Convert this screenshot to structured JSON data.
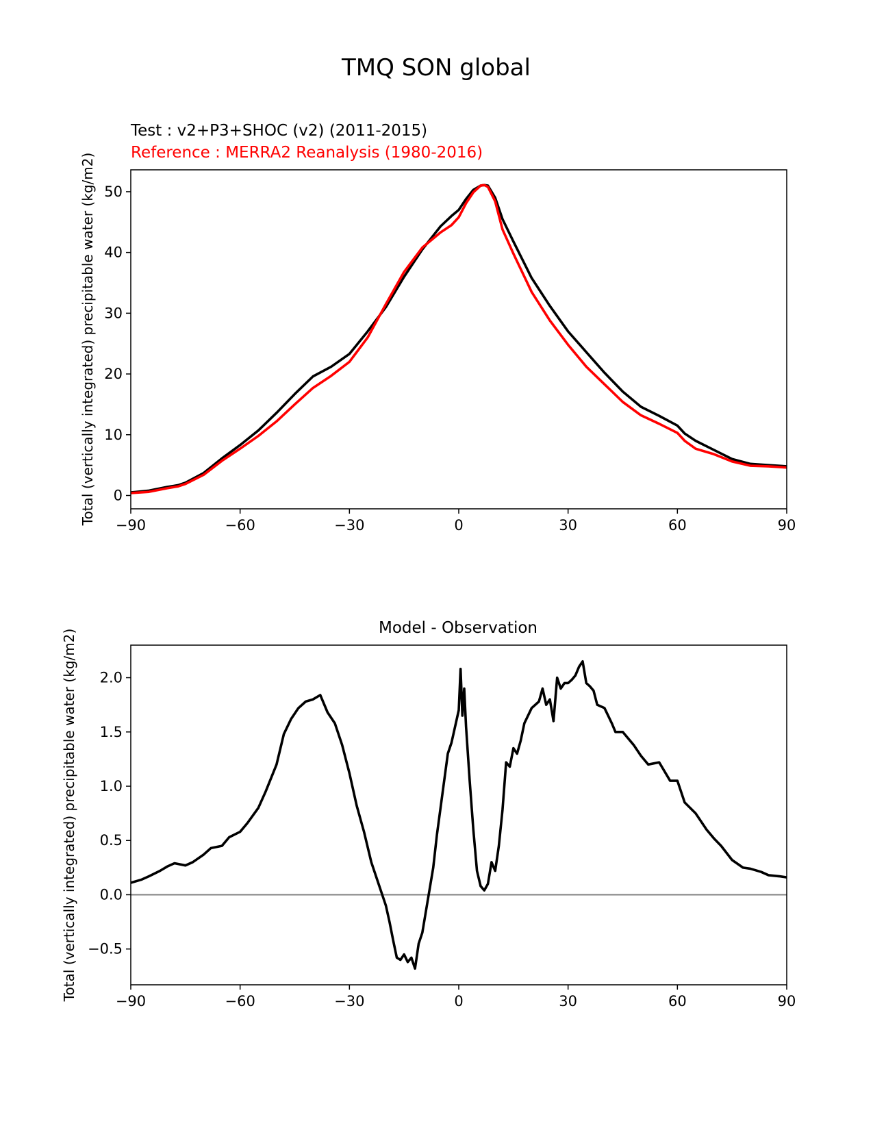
{
  "figure": {
    "suptitle": "TMQ SON global"
  },
  "colors": {
    "test": "#000000",
    "reference": "#ff0000",
    "zero_line": "#808080",
    "axis": "#000000"
  },
  "chart_data": [
    {
      "type": "line",
      "legend_lines": [
        "Test : v2+P3+SHOC (v2) (2011-2015)",
        "Reference : MERRA2 Reanalysis (1980-2016)"
      ],
      "title": "",
      "xlabel": "",
      "ylabel": "Total (vertically integrated) precipitable water (kg/m2)",
      "xlim": [
        -90,
        90
      ],
      "ylim": [
        -2.2,
        53.6
      ],
      "xticks": [
        -90,
        -60,
        -30,
        0,
        30,
        60,
        90
      ],
      "xtick_labels": [
        "−90",
        "−60",
        "−30",
        "0",
        "30",
        "60",
        "90"
      ],
      "yticks": [
        0,
        10,
        20,
        30,
        40,
        50
      ],
      "ytick_labels": [
        "0",
        "10",
        "20",
        "30",
        "40",
        "50"
      ],
      "x": [
        -90,
        -85,
        -80,
        -77,
        -75,
        -70,
        -65,
        -60,
        -55,
        -50,
        -45,
        -40,
        -35,
        -30,
        -25,
        -20,
        -15,
        -10,
        -5,
        -2,
        0,
        2,
        4,
        6,
        7,
        8,
        10,
        12,
        15,
        20,
        25,
        30,
        35,
        40,
        45,
        50,
        55,
        60,
        62,
        65,
        70,
        75,
        80,
        85,
        90
      ],
      "series": [
        {
          "name": "Test",
          "values": [
            0.5,
            0.8,
            1.4,
            1.7,
            2.1,
            3.7,
            6.1,
            8.3,
            10.7,
            13.6,
            16.7,
            19.6,
            21.2,
            23.3,
            27.0,
            31.0,
            36.0,
            40.5,
            44.3,
            46.0,
            47.0,
            48.8,
            50.3,
            51.0,
            51.1,
            51.0,
            49.0,
            45.5,
            41.8,
            35.8,
            31.2,
            27.0,
            23.6,
            20.2,
            17.1,
            14.6,
            13.1,
            11.5,
            10.2,
            9.0,
            7.5,
            6.0,
            5.2,
            5.0,
            4.8
          ]
        },
        {
          "name": "Reference",
          "values": [
            0.4,
            0.6,
            1.2,
            1.5,
            1.9,
            3.4,
            5.7,
            7.7,
            9.8,
            12.2,
            15.0,
            17.7,
            19.7,
            22.0,
            26.0,
            31.5,
            36.8,
            40.8,
            43.3,
            44.5,
            45.8,
            48.1,
            49.9,
            51.0,
            51.1,
            50.8,
            48.4,
            43.8,
            39.8,
            33.5,
            28.8,
            24.8,
            21.2,
            18.3,
            15.4,
            13.2,
            11.8,
            10.3,
            9.0,
            7.7,
            6.8,
            5.6,
            4.9,
            4.8,
            4.6
          ]
        }
      ]
    },
    {
      "type": "line",
      "title": "Model - Observation",
      "xlabel": "",
      "ylabel": "Total (vertically integrated) precipitable water (kg/m2)",
      "xlim": [
        -90,
        90
      ],
      "ylim": [
        -0.83,
        2.3
      ],
      "xticks": [
        -90,
        -60,
        -30,
        0,
        30,
        60,
        90
      ],
      "xtick_labels": [
        "−90",
        "−60",
        "−30",
        "0",
        "30",
        "60",
        "90"
      ],
      "yticks": [
        -0.5,
        0.0,
        0.5,
        1.0,
        1.5,
        2.0
      ],
      "ytick_labels": [
        "−0.5",
        "0.0",
        "0.5",
        "1.0",
        "1.5",
        "2.0"
      ],
      "zero_line": 0,
      "x": [
        -90,
        -87,
        -85,
        -82,
        -80,
        -78,
        -75,
        -73,
        -70,
        -68,
        -65,
        -63,
        -60,
        -58,
        -55,
        -53,
        -50,
        -48,
        -46,
        -44,
        -42,
        -40,
        -38,
        -36,
        -34,
        -32,
        -30,
        -28,
        -26,
        -24,
        -22,
        -21,
        -20,
        -19,
        -18,
        -17,
        -16,
        -15,
        -14,
        -13,
        -12,
        -11,
        -10,
        -9,
        -8,
        -7,
        -6,
        -5,
        -4,
        -3,
        -2,
        -1,
        0,
        0.5,
        1,
        1.5,
        2,
        3,
        4,
        5,
        6,
        7,
        8,
        9,
        10,
        11,
        12,
        13,
        14,
        15,
        16,
        17,
        18,
        20,
        22,
        23,
        24,
        25,
        26,
        27,
        28,
        29,
        30,
        31,
        32,
        33,
        34,
        35,
        36,
        37,
        38,
        40,
        42,
        43,
        45,
        48,
        50,
        52,
        55,
        58,
        60,
        62,
        65,
        68,
        70,
        72,
        75,
        78,
        80,
        83,
        85,
        88,
        90
      ],
      "series": [
        {
          "name": "Model - Observation",
          "values": [
            0.11,
            0.14,
            0.17,
            0.22,
            0.26,
            0.29,
            0.27,
            0.3,
            0.37,
            0.43,
            0.45,
            0.53,
            0.58,
            0.66,
            0.8,
            0.95,
            1.2,
            1.48,
            1.62,
            1.72,
            1.78,
            1.8,
            1.84,
            1.68,
            1.58,
            1.38,
            1.12,
            0.82,
            0.58,
            0.3,
            0.1,
            0.0,
            -0.1,
            -0.25,
            -0.42,
            -0.58,
            -0.6,
            -0.55,
            -0.62,
            -0.58,
            -0.68,
            -0.45,
            -0.35,
            -0.15,
            0.05,
            0.25,
            0.55,
            0.8,
            1.05,
            1.3,
            1.4,
            1.55,
            1.7,
            2.08,
            1.65,
            1.9,
            1.55,
            1.05,
            0.6,
            0.22,
            0.08,
            0.04,
            0.1,
            0.3,
            0.22,
            0.45,
            0.78,
            1.22,
            1.18,
            1.35,
            1.3,
            1.42,
            1.58,
            1.72,
            1.78,
            1.9,
            1.75,
            1.8,
            1.6,
            2.0,
            1.9,
            1.95,
            1.95,
            1.98,
            2.02,
            2.1,
            2.15,
            1.95,
            1.92,
            1.88,
            1.75,
            1.72,
            1.58,
            1.5,
            1.5,
            1.38,
            1.28,
            1.2,
            1.22,
            1.05,
            1.05,
            0.85,
            0.75,
            0.6,
            0.52,
            0.45,
            0.32,
            0.25,
            0.24,
            0.21,
            0.18,
            0.17,
            0.16
          ]
        }
      ]
    }
  ]
}
